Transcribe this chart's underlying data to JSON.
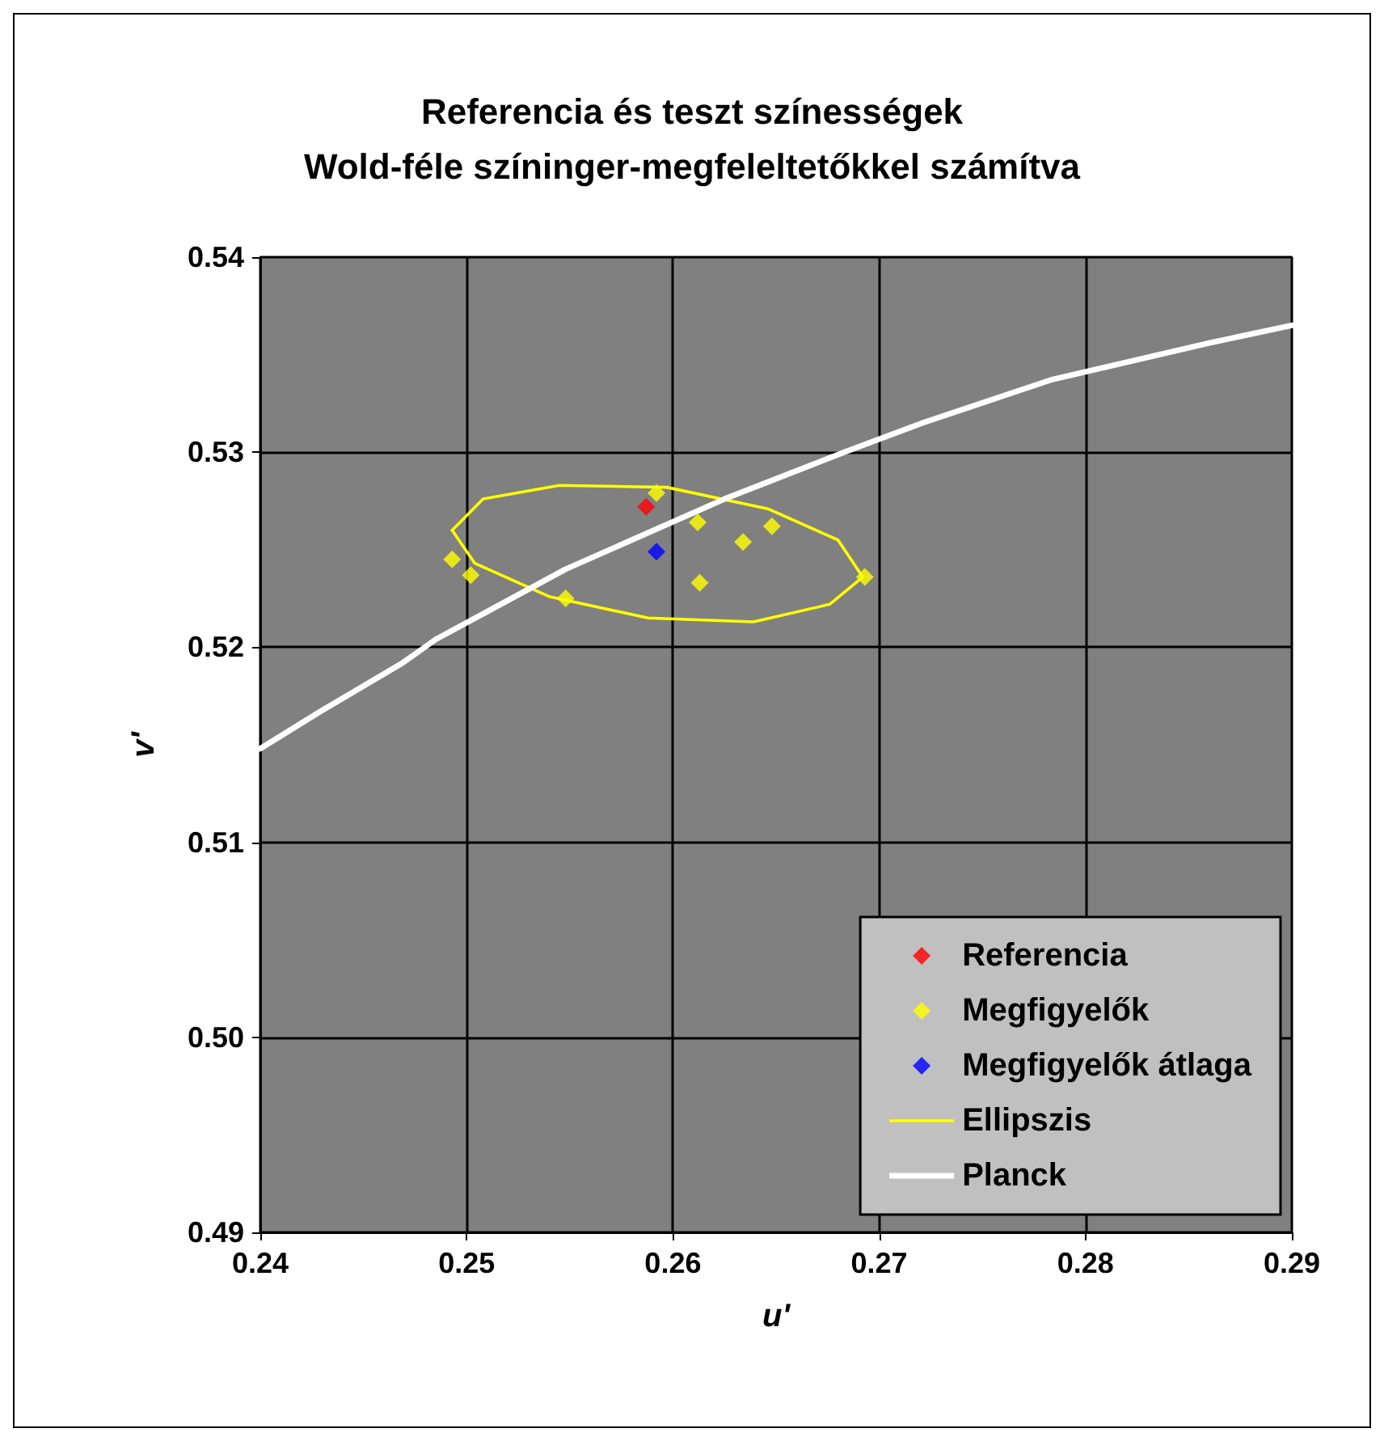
{
  "chart_data": {
    "type": "scatter",
    "title": "Referencia és teszt színességek\nWold-féle színinger-megfeleltetőkkel számítva",
    "xlabel": "u'",
    "ylabel": "v'",
    "xlim": [
      0.24,
      0.29
    ],
    "xticks": [
      {
        "value": 0.24,
        "label": "0.24"
      },
      {
        "value": 0.25,
        "label": "0.25"
      },
      {
        "value": 0.26,
        "label": "0.26"
      },
      {
        "value": 0.27,
        "label": "0.27"
      },
      {
        "value": 0.28,
        "label": "0.28"
      },
      {
        "value": 0.29,
        "label": "0.29"
      }
    ],
    "ylim": [
      0.49,
      0.54
    ],
    "yticks": [
      {
        "value": 0.49,
        "label": "0.49"
      },
      {
        "value": 0.5,
        "label": "0.50"
      },
      {
        "value": 0.51,
        "label": "0.51"
      },
      {
        "value": 0.52,
        "label": "0.52"
      },
      {
        "value": 0.53,
        "label": "0.53"
      },
      {
        "value": 0.54,
        "label": "0.54"
      }
    ],
    "grid": true,
    "legend": "bottom right",
    "marker": "diamond",
    "series": [
      {
        "name": "Referencia",
        "color": "#ff0000",
        "x": [
          0.2587
        ],
        "values": [
          0.5272
        ]
      },
      {
        "name": "Megfigyelők",
        "color": "#ffff00",
        "x": [
          0.2493,
          0.2502,
          0.2548,
          0.2592,
          0.2612,
          0.2613,
          0.2634,
          0.2648,
          0.2693
        ],
        "values": [
          0.5245,
          0.5237,
          0.5225,
          0.5279,
          0.5264,
          0.5233,
          0.5254,
          0.5262,
          0.5236
        ]
      },
      {
        "name": "Megfigyelők átlaga",
        "color": "#0000ff",
        "x": [
          0.2592
        ],
        "values": [
          0.5249
        ]
      },
      {
        "name": "Ellipszis",
        "type": "line",
        "marker": "none",
        "color": "#ffff00",
        "x": [
          0.2493,
          0.2508,
          0.2545,
          0.2597,
          0.2646,
          0.268,
          0.2692
        ],
        "values": [
          0.526,
          0.5276,
          0.5283,
          0.5282,
          0.5271,
          0.5255,
          0.5236
        ]
      },
      {
        "type": "line",
        "marker": "none",
        "color": "#ffff00",
        "x": [
          0.2493,
          0.2504,
          0.254,
          0.2588,
          0.2639,
          0.2676,
          0.2692
        ],
        "values": [
          0.526,
          0.5243,
          0.5226,
          0.5215,
          0.5213,
          0.5222,
          0.5236
        ]
      },
      {
        "name": "Planck",
        "type": "line",
        "marker": "none",
        "color": "#ffffff",
        "x": [
          0.24,
          0.2429,
          0.2469,
          0.2485,
          0.2548,
          0.2625,
          0.2683,
          0.2721,
          0.2783,
          0.286,
          0.29
        ],
        "values": [
          0.5148,
          0.5167,
          0.5192,
          0.5204,
          0.524,
          0.5276,
          0.53,
          0.5315,
          0.5337,
          0.5356,
          0.5365
        ]
      }
    ]
  }
}
